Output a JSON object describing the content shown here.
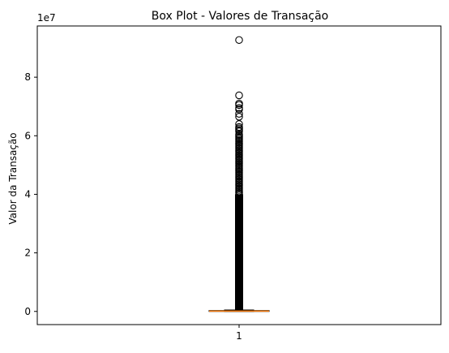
{
  "chart_data": {
    "type": "box",
    "title": "Box Plot - Valores de Transação",
    "xlabel": "",
    "ylabel": "Valor da Transação",
    "y_offset_label": "1e7",
    "categories": [
      "1"
    ],
    "y_ticks": [
      0,
      2,
      4,
      6,
      8
    ],
    "ylim": [
      -0.45,
      9.75
    ],
    "box": {
      "min": 0.0,
      "q1": 0.0,
      "median": 0.01,
      "q3": 0.03,
      "whisker_high": 0.05
    },
    "outliers": [
      9.27,
      7.38,
      7.1,
      7.05,
      6.95,
      6.9,
      6.75,
      6.65,
      6.4,
      6.3,
      6.25,
      6.2,
      6.15,
      6.05,
      6.0,
      5.95,
      5.9,
      5.85,
      5.8,
      5.75,
      5.7,
      5.65,
      5.6,
      5.55,
      5.5,
      5.45,
      5.4,
      5.35,
      5.3,
      5.25,
      5.2,
      5.15,
      5.1,
      5.05,
      5.0,
      4.95,
      4.9,
      4.85,
      4.8,
      4.75,
      4.7,
      4.65,
      4.6,
      4.55,
      4.5,
      4.45,
      4.4,
      4.35,
      4.3,
      4.25,
      4.2,
      4.15,
      4.1,
      4.05,
      4.0
    ],
    "outlier_dense_range": [
      0.05,
      4.0
    ],
    "grid": false,
    "colors": {
      "median": "#ff7f0e",
      "box": "#000000",
      "outlier": "#000000"
    }
  }
}
